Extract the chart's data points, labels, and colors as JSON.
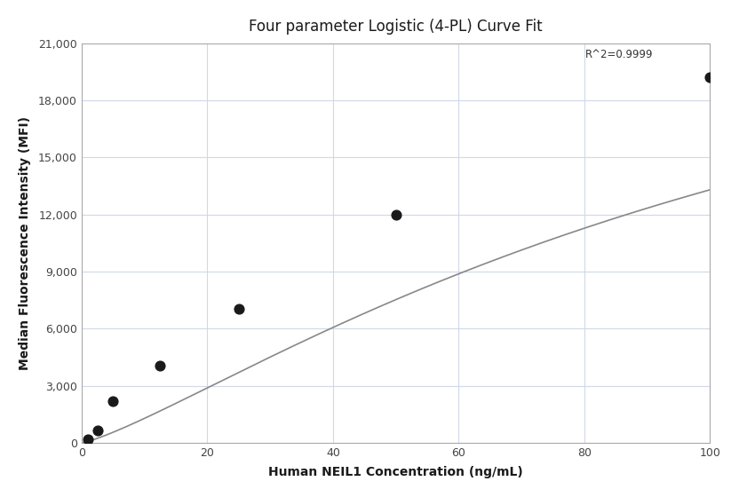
{
  "title": "Four parameter Logistic (4-PL) Curve Fit",
  "xlabel": "Human NEIL1 Concentration (ng/mL)",
  "ylabel": "Median Fluorescence Intensity (MFI)",
  "scatter_x": [
    1.0,
    2.5,
    5.0,
    12.5,
    25.0,
    50.0,
    100.0
  ],
  "scatter_y": [
    200,
    650,
    2200,
    4050,
    7050,
    12000,
    19200
  ],
  "dot_color": "#1a1a1a",
  "dot_size": 60,
  "line_color": "#888888",
  "xlim": [
    0,
    100
  ],
  "ylim": [
    0,
    21000
  ],
  "xticks": [
    0,
    20,
    40,
    60,
    80,
    100
  ],
  "yticks": [
    0,
    3000,
    6000,
    9000,
    12000,
    15000,
    18000,
    21000
  ],
  "r2_text": "R^2=0.9999",
  "r2_x": 97,
  "r2_y": 20100,
  "grid_color": "#d0d8e8",
  "background_color": "#ffffff",
  "4pl_A": 0.0,
  "4pl_B": 1.25,
  "4pl_C": 120.0,
  "4pl_D": 30000.0
}
